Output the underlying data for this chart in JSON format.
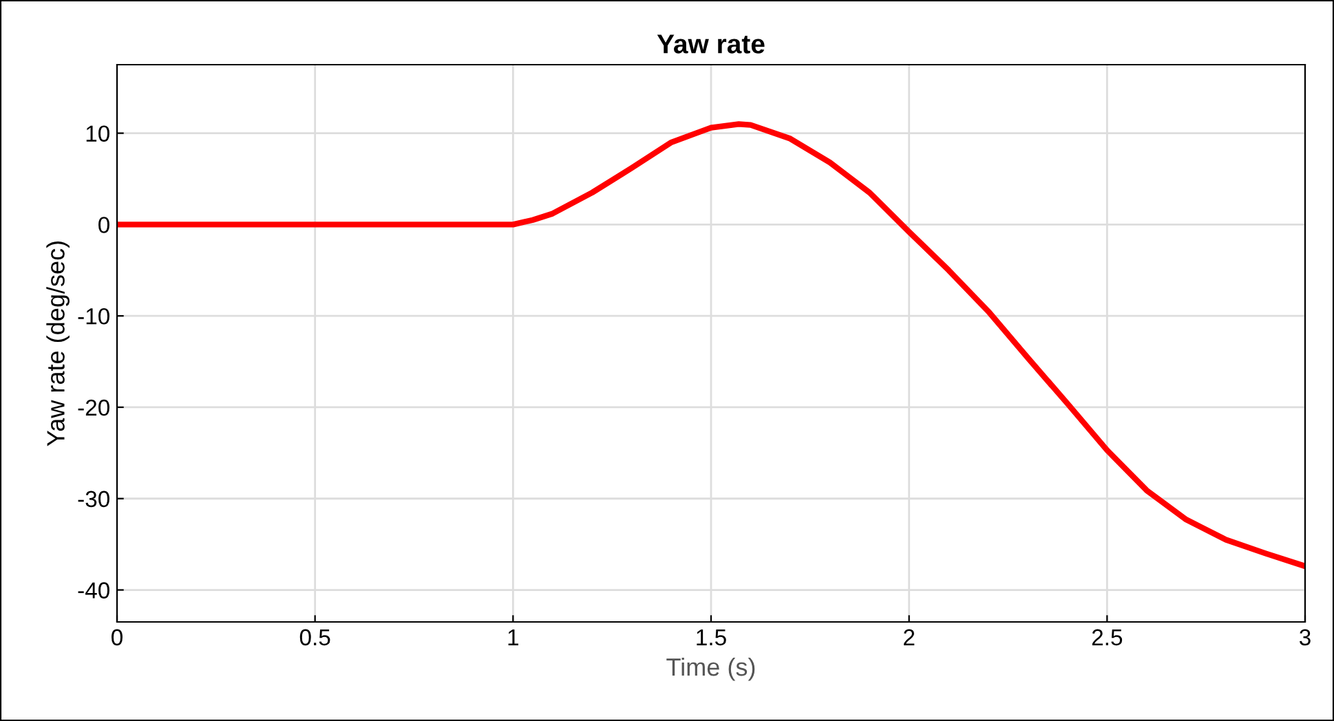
{
  "chart_data": {
    "type": "line",
    "title": "Yaw rate",
    "xlabel": "Time (s)",
    "ylabel": "Yaw rate (deg/sec)",
    "xlim": [
      0,
      3
    ],
    "ylim": [
      -43.5,
      17.5
    ],
    "xticks": [
      0,
      0.5,
      1,
      1.5,
      2,
      2.5,
      3
    ],
    "yticks": [
      -40,
      -30,
      -20,
      -10,
      0,
      10
    ],
    "grid": true,
    "legend": false,
    "marker": "none",
    "line_style": "solid",
    "series": [
      {
        "color": "#ff0000",
        "x": [
          0,
          0.5,
          1,
          1.05,
          1.1,
          1.2,
          1.3,
          1.4,
          1.5,
          1.57,
          1.6,
          1.7,
          1.8,
          1.9,
          2.0,
          2.1,
          2.2,
          2.3,
          2.4,
          2.5,
          2.6,
          2.7,
          2.8,
          2.9,
          3.0
        ],
        "values": [
          0,
          0,
          0,
          0.5,
          1.2,
          3.5,
          6.2,
          9,
          10.6,
          11,
          10.9,
          9.4,
          6.8,
          3.5,
          -0.8,
          -5,
          -9.5,
          -14.6,
          -19.6,
          -24.7,
          -29.1,
          -32.3,
          -34.5,
          -36,
          -37.4
        ]
      }
    ]
  }
}
